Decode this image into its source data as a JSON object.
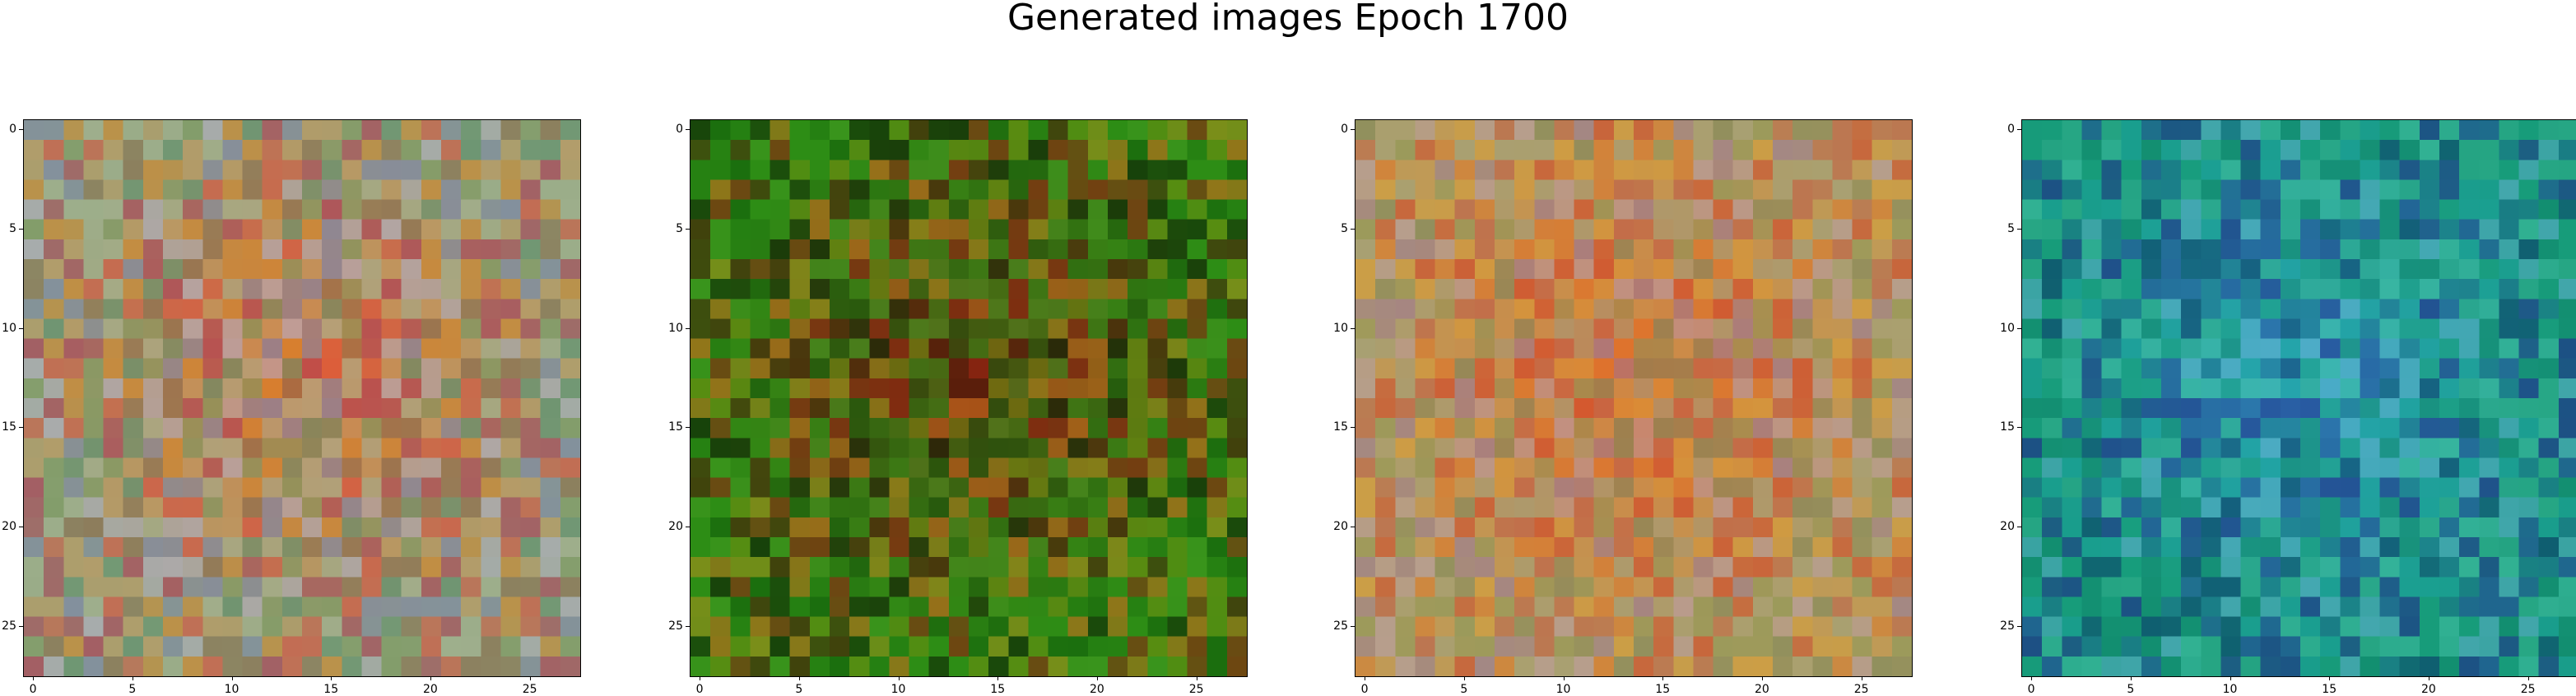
{
  "figure": {
    "title": "Generated images Epoch 1700",
    "tick_labels": [
      "0",
      "5",
      "10",
      "15",
      "20",
      "25"
    ],
    "grid_size": 28,
    "panels": [
      {
        "name": "generated-image-1",
        "palette": [
          "#7f9a62",
          "#a9b596",
          "#c79a62",
          "#d8872c",
          "#e0503f",
          "#b03a58",
          "#8c6a4d",
          "#5e8f6f",
          "#7f86b0",
          "#b7b1c8"
        ],
        "center_tint": "#e06a2a",
        "edge_tint": "#8ba37a"
      },
      {
        "name": "generated-image-2",
        "palette": [
          "#1f7a10",
          "#2c8f15",
          "#0f5e0a",
          "#3f9a20",
          "#6e8f10",
          "#a4901c",
          "#c86a1c",
          "#8f2210",
          "#4a1a08",
          "#0a1a04"
        ],
        "center_tint": "#7a2010",
        "edge_tint": "#2f8a14"
      },
      {
        "name": "generated-image-3",
        "palette": [
          "#c79a52",
          "#d9a03a",
          "#e07a2a",
          "#d24a2a",
          "#c0624a",
          "#8e9a5a",
          "#a2a47e",
          "#b8a0a8",
          "#9a7e9a",
          "#7e8a5e"
        ],
        "center_tint": "#e0622a",
        "edge_tint": "#b49a5c"
      },
      {
        "name": "generated-image-4",
        "palette": [
          "#16a07a",
          "#1aa39a",
          "#0f8a6a",
          "#2fb08a",
          "#1a6f8a",
          "#234a9a",
          "#1f2a8a",
          "#3fc0a0",
          "#5ab0c8",
          "#0a3f6a"
        ],
        "center_tint": "#3aa8d0",
        "edge_tint": "#18967a"
      }
    ]
  }
}
